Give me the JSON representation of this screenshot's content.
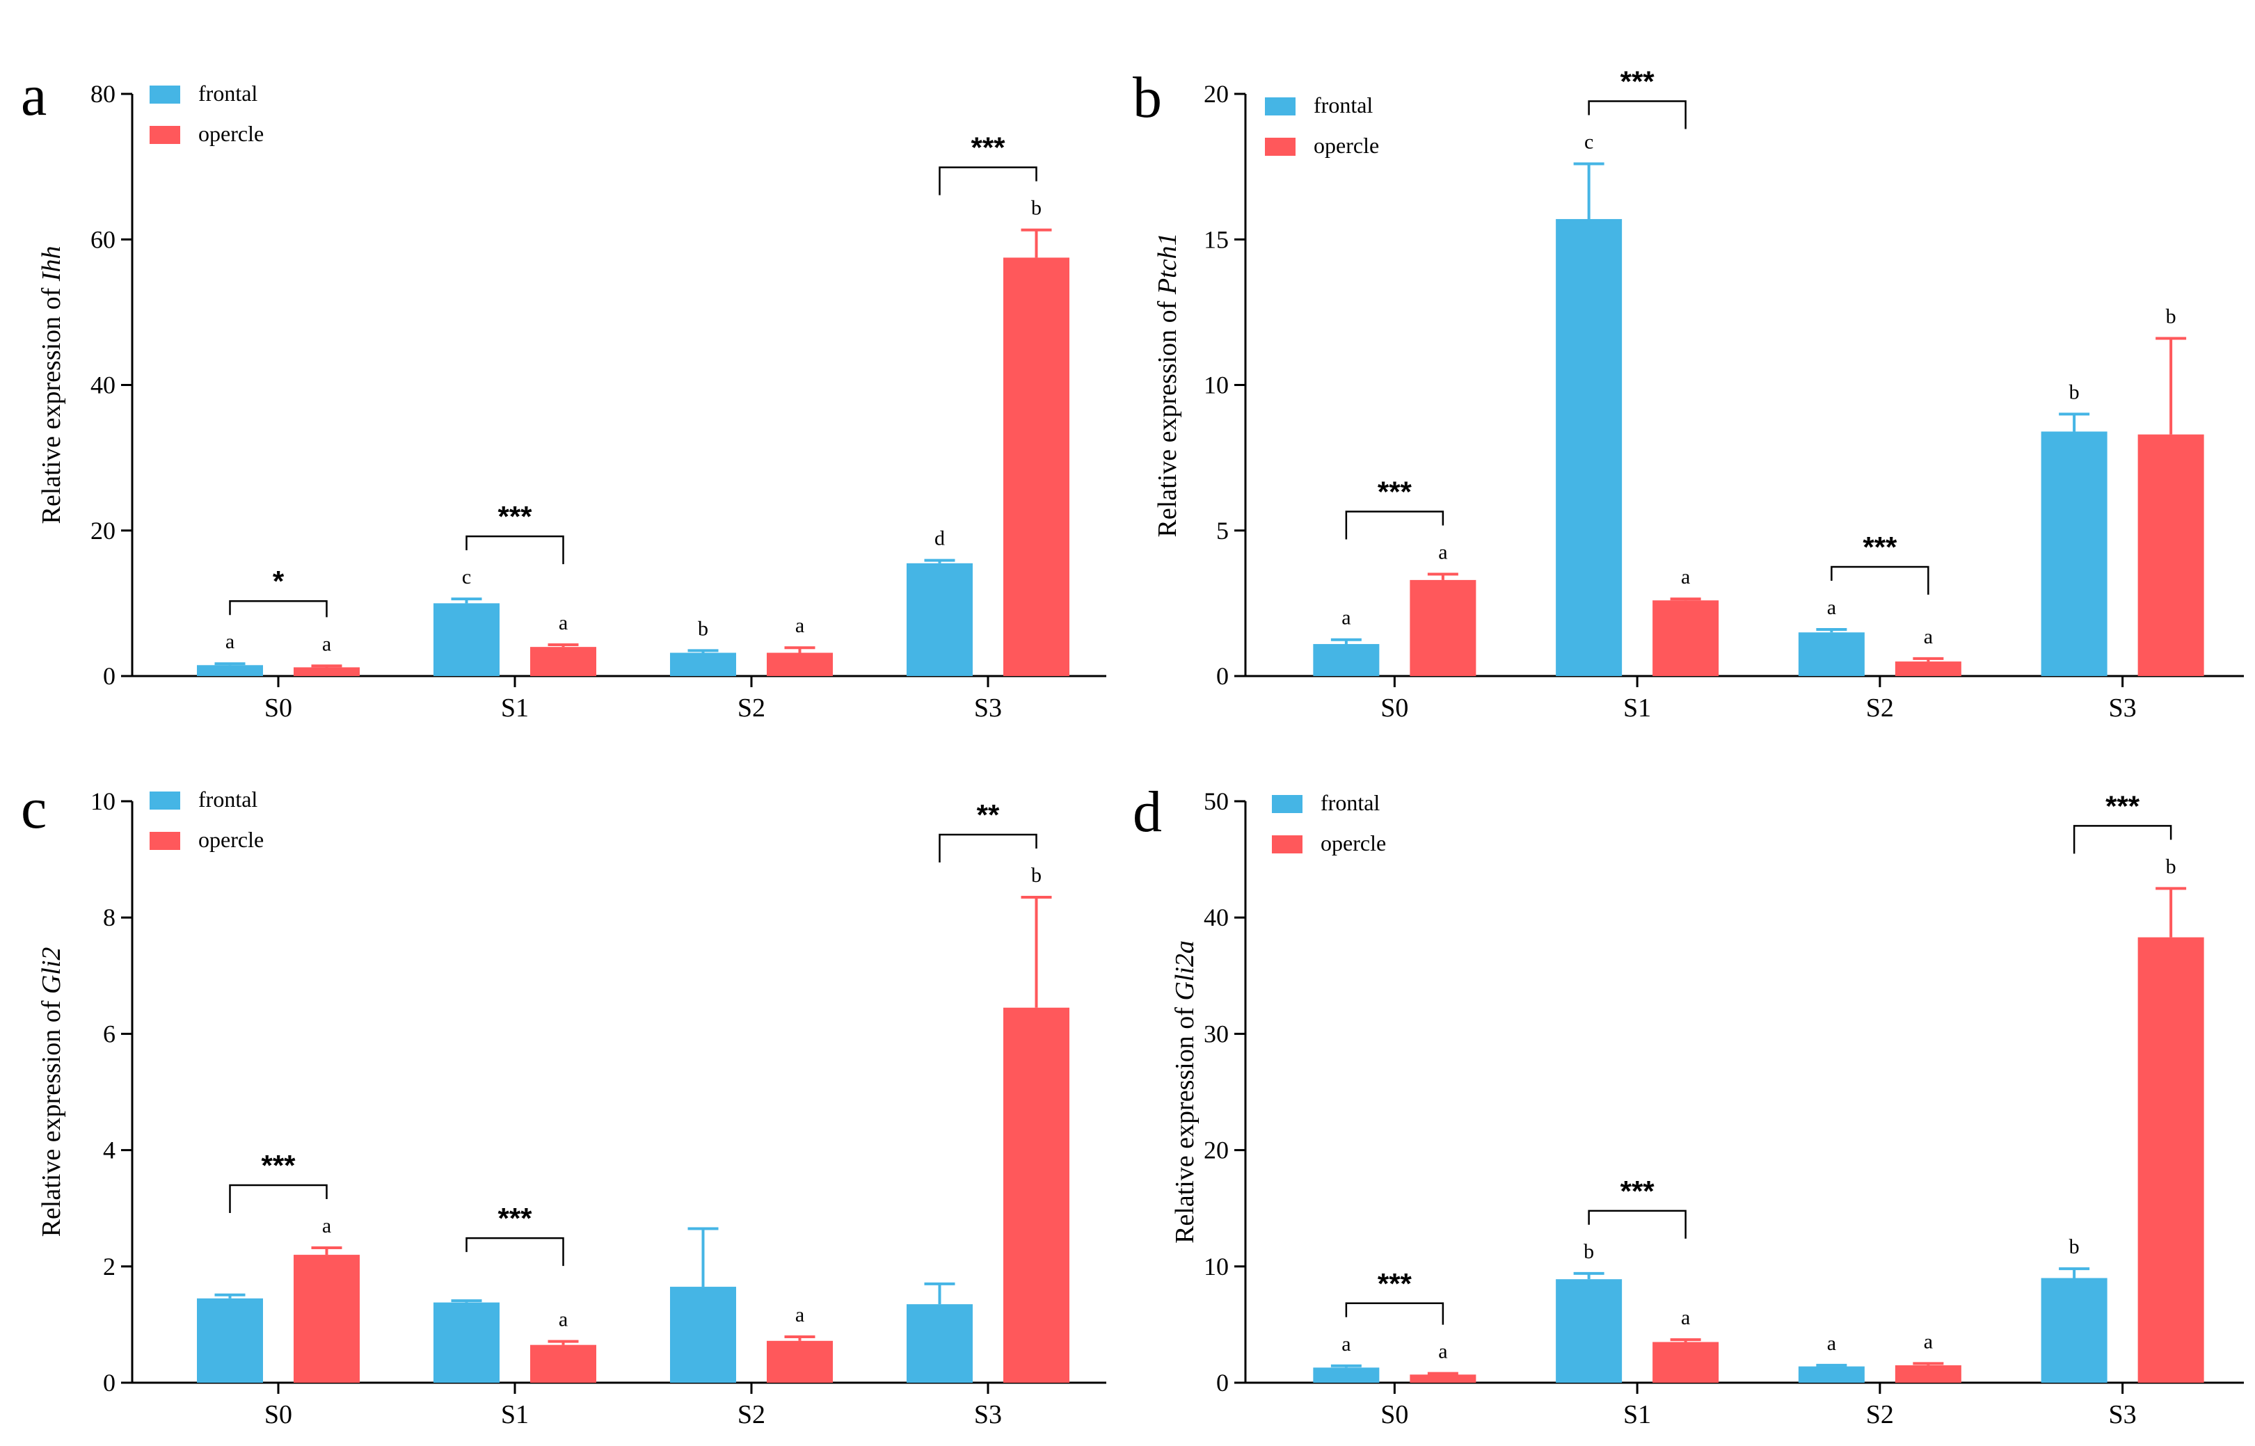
{
  "colors": {
    "frontal": "#45B5E5",
    "opercle": "#FF585B",
    "axis": "#000000"
  },
  "chart_data": [
    {
      "type": "bar",
      "panel": "a",
      "categories": [
        "S0",
        "S1",
        "S2",
        "S3"
      ],
      "ylabel_prefix": "Relative expression of ",
      "ylabel_gene": "Ihh",
      "ylim": [
        0,
        80
      ],
      "yticks": [
        "0",
        "20",
        "40",
        "60",
        "80"
      ],
      "legend": [
        "frontal",
        "opercle"
      ],
      "series": [
        {
          "name": "frontal",
          "values": [
            1.5,
            10.0,
            3.2,
            15.5
          ],
          "errors": [
            0.2,
            0.6,
            0.3,
            0.4
          ],
          "letters": [
            "a",
            "c",
            "b",
            "d"
          ]
        },
        {
          "name": "opercle",
          "values": [
            1.2,
            4.0,
            3.2,
            57.5
          ],
          "errors": [
            0.2,
            0.3,
            0.7,
            3.8
          ],
          "letters": [
            "a",
            "a",
            "a",
            "b"
          ]
        }
      ],
      "significance": [
        {
          "category": "S0",
          "label": "*"
        },
        {
          "category": "S1",
          "label": "***"
        },
        {
          "category": "S3",
          "label": "***"
        }
      ]
    },
    {
      "type": "bar",
      "panel": "b",
      "categories": [
        "S0",
        "S1",
        "S2",
        "S3"
      ],
      "ylabel_prefix": "Relative expression of ",
      "ylabel_gene": "Ptch1",
      "ylim": [
        0,
        20
      ],
      "yticks": [
        "0",
        "5",
        "10",
        "15",
        "20"
      ],
      "legend": [
        "frontal",
        "opercle"
      ],
      "series": [
        {
          "name": "frontal",
          "values": [
            1.1,
            15.7,
            1.5,
            8.4
          ],
          "errors": [
            0.15,
            1.9,
            0.1,
            0.6
          ],
          "letters": [
            "a",
            "c",
            "a",
            "b"
          ]
        },
        {
          "name": "opercle",
          "values": [
            3.3,
            2.6,
            0.5,
            8.3
          ],
          "errors": [
            0.2,
            0.05,
            0.1,
            3.3
          ],
          "letters": [
            "a",
            "a",
            "a",
            "b"
          ]
        }
      ],
      "significance": [
        {
          "category": "S0",
          "label": "***"
        },
        {
          "category": "S1",
          "label": "***"
        },
        {
          "category": "S2",
          "label": "***"
        }
      ]
    },
    {
      "type": "bar",
      "panel": "c",
      "categories": [
        "S0",
        "S1",
        "S2",
        "S3"
      ],
      "ylabel_prefix": "Relative expression of ",
      "ylabel_gene": "Gli2",
      "ylim": [
        0,
        10
      ],
      "yticks": [
        "0",
        "2",
        "4",
        "6",
        "8",
        "10"
      ],
      "legend": [
        "frontal",
        "opercle"
      ],
      "series": [
        {
          "name": "frontal",
          "values": [
            1.45,
            1.38,
            1.65,
            1.35
          ],
          "errors": [
            0.06,
            0.03,
            1.0,
            0.35
          ],
          "letters": [
            "",
            "",
            "",
            ""
          ]
        },
        {
          "name": "opercle",
          "values": [
            2.2,
            0.65,
            0.72,
            6.45
          ],
          "errors": [
            0.12,
            0.06,
            0.07,
            1.9
          ],
          "letters": [
            "a",
            "a",
            "a",
            "b"
          ]
        }
      ],
      "significance": [
        {
          "category": "S0",
          "label": "***"
        },
        {
          "category": "S1",
          "label": "***"
        },
        {
          "category": "S3",
          "label": "**"
        }
      ]
    },
    {
      "type": "bar",
      "panel": "d",
      "categories": [
        "S0",
        "S1",
        "S2",
        "S3"
      ],
      "ylabel_prefix": "Relative expression of ",
      "ylabel_gene": "Gli2a",
      "ylim": [
        0,
        50
      ],
      "yticks": [
        "0",
        "10",
        "20",
        "30",
        "40",
        "50"
      ],
      "legend": [
        "frontal",
        "opercle"
      ],
      "series": [
        {
          "name": "frontal",
          "values": [
            1.3,
            8.9,
            1.4,
            9.0
          ],
          "errors": [
            0.15,
            0.5,
            0.1,
            0.8
          ],
          "letters": [
            "a",
            "b",
            "a",
            "b"
          ]
        },
        {
          "name": "opercle",
          "values": [
            0.7,
            3.5,
            1.5,
            38.3
          ],
          "errors": [
            0.1,
            0.2,
            0.15,
            4.2
          ],
          "letters": [
            "a",
            "a",
            "a",
            "b"
          ]
        }
      ],
      "significance": [
        {
          "category": "S0",
          "label": "***"
        },
        {
          "category": "S1",
          "label": "***"
        },
        {
          "category": "S3",
          "label": "***"
        }
      ]
    }
  ]
}
